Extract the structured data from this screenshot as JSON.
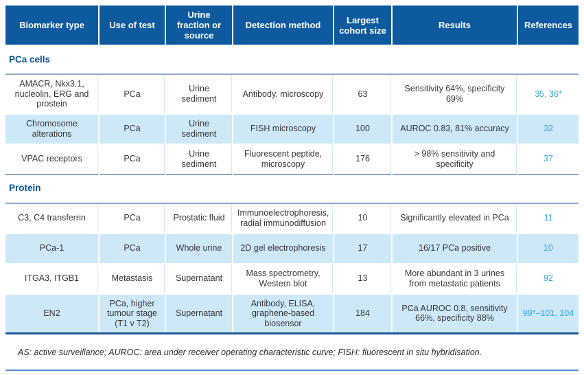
{
  "colors": {
    "header_bg": "#0D5A9F",
    "alt_row_bg": "#CDE8F7",
    "reference_text": "#2FA8E1",
    "section_title_text": "#0A5296",
    "section_divider": "#8FA9C8",
    "table_bottom_border": "#1A5796",
    "page_rule": "#5090C8"
  },
  "table": {
    "columns": [
      "Biomarker type",
      "Use of test",
      "Urine fraction or source",
      "Detection method",
      "Largest cohort size",
      "Results",
      "References"
    ],
    "sections": [
      {
        "title": "PCa cells",
        "rows": [
          [
            "AMACR, Nkx3.1, nucleolin, ERG and prostein",
            "PCa",
            "Urine sediment",
            "Antibody, microscopy",
            "63",
            "Sensitivity 64%, specificity 69%",
            "35, 36*"
          ],
          [
            "Chromosome alterations",
            "PCa",
            "Urine sediment",
            "FISH microscopy",
            "100",
            "AUROC 0.83, 81% accuracy",
            "32"
          ],
          [
            "VPAC receptors",
            "PCa",
            "Urine sediment",
            "Fluorescent peptide, microscopy",
            "176",
            "> 98% sensitivity and specificity",
            "37"
          ]
        ]
      },
      {
        "title": "Protein",
        "rows": [
          [
            "C3, C4 transferrin",
            "PCa",
            "Prostatic fluid",
            "Immunoelectrophoresis, radial immunodiffusion",
            "10",
            "Significantly elevated in PCa",
            "11"
          ],
          [
            "PCa-1",
            "PCa",
            "Whole urine",
            "2D gel electrophoresis",
            "17",
            "16/17 PCa positive",
            "10"
          ],
          [
            "ITGA3, ITGB1",
            "Metastasis",
            "Supernatant",
            "Mass spectrometry, Western blot",
            "13",
            "More abundant in 3 urines from metastatic patients",
            "92"
          ],
          [
            "EN2",
            "PCa, higher tumour stage (T1 v T2)",
            "Supernatant",
            "Antibody, ELISA, graphene-based biosensor",
            "184",
            "PCa AUROC 0.8, sensitivity 66%, specificity 88%",
            "99*–101, 104"
          ]
        ]
      }
    ],
    "footnote": "AS: active surveillance; AUROC: area under receiver operating characteristic curve; FISH: fluorescent in situ hybridisation."
  }
}
